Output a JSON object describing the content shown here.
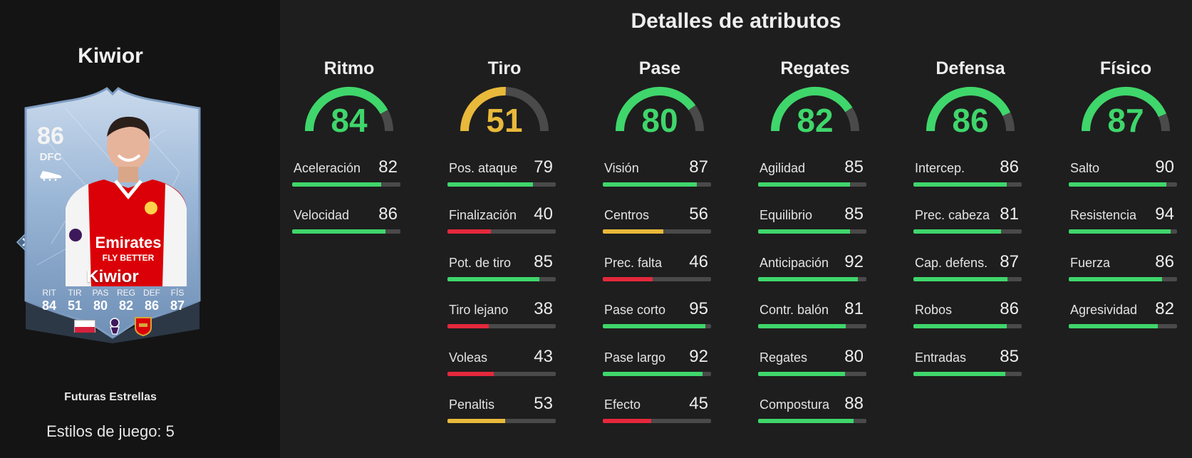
{
  "player": {
    "name": "Kiwior",
    "rating": "86",
    "position": "DFC",
    "card_name": "Kiwior",
    "rarity": "Futuras Estrellas",
    "playstyles_label": "Estilos de juego: 5",
    "card_stats": [
      {
        "label": "RIT",
        "value": "84"
      },
      {
        "label": "TIR",
        "value": "51"
      },
      {
        "label": "PAS",
        "value": "80"
      },
      {
        "label": "REG",
        "value": "82"
      },
      {
        "label": "DEF",
        "value": "86"
      },
      {
        "label": "FÍS",
        "value": "87"
      }
    ]
  },
  "section_title": "Detalles de atributos",
  "colors": {
    "green": "#3fd66b",
    "yellow": "#e8b93a",
    "red": "#e5283c",
    "track": "#4a4a4a"
  },
  "categories": [
    {
      "label": "Ritmo",
      "value": 84,
      "color": "green",
      "attributes": [
        {
          "name": "Aceleración",
          "value": 82,
          "color": "green"
        },
        {
          "name": "Velocidad",
          "value": 86,
          "color": "green"
        }
      ]
    },
    {
      "label": "Tiro",
      "value": 51,
      "color": "yellow",
      "attributes": [
        {
          "name": "Pos. ataque",
          "value": 79,
          "color": "green"
        },
        {
          "name": "Finalización",
          "value": 40,
          "color": "red"
        },
        {
          "name": "Pot. de tiro",
          "value": 85,
          "color": "green"
        },
        {
          "name": "Tiro lejano",
          "value": 38,
          "color": "red"
        },
        {
          "name": "Voleas",
          "value": 43,
          "color": "red"
        },
        {
          "name": "Penaltis",
          "value": 53,
          "color": "yellow"
        }
      ]
    },
    {
      "label": "Pase",
      "value": 80,
      "color": "green",
      "attributes": [
        {
          "name": "Visión",
          "value": 87,
          "color": "green"
        },
        {
          "name": "Centros",
          "value": 56,
          "color": "yellow"
        },
        {
          "name": "Prec. falta",
          "value": 46,
          "color": "red"
        },
        {
          "name": "Pase corto",
          "value": 95,
          "color": "green"
        },
        {
          "name": "Pase largo",
          "value": 92,
          "color": "green"
        },
        {
          "name": "Efecto",
          "value": 45,
          "color": "red"
        }
      ]
    },
    {
      "label": "Regates",
      "value": 82,
      "color": "green",
      "attributes": [
        {
          "name": "Agilidad",
          "value": 85,
          "color": "green"
        },
        {
          "name": "Equilibrio",
          "value": 85,
          "color": "green"
        },
        {
          "name": "Anticipación",
          "value": 92,
          "color": "green"
        },
        {
          "name": "Contr. balón",
          "value": 81,
          "color": "green"
        },
        {
          "name": "Regates",
          "value": 80,
          "color": "green"
        },
        {
          "name": "Compostura",
          "value": 88,
          "color": "green"
        }
      ]
    },
    {
      "label": "Defensa",
      "value": 86,
      "color": "green",
      "attributes": [
        {
          "name": "Intercep.",
          "value": 86,
          "color": "green"
        },
        {
          "name": "Prec. cabeza",
          "value": 81,
          "color": "green"
        },
        {
          "name": "Cap. defens.",
          "value": 87,
          "color": "green"
        },
        {
          "name": "Robos",
          "value": 86,
          "color": "green"
        },
        {
          "name": "Entradas",
          "value": 85,
          "color": "green"
        }
      ]
    },
    {
      "label": "Físico",
      "value": 87,
      "color": "green",
      "attributes": [
        {
          "name": "Salto",
          "value": 90,
          "color": "green"
        },
        {
          "name": "Resistencia",
          "value": 94,
          "color": "green"
        },
        {
          "name": "Fuerza",
          "value": 86,
          "color": "green"
        },
        {
          "name": "Agresividad",
          "value": 82,
          "color": "green"
        }
      ]
    }
  ],
  "icons": [
    "boot-icon",
    "chevron-right-icon",
    "premier-league-icon",
    "arsenal-badge-icon",
    "poland-flag-icon"
  ]
}
